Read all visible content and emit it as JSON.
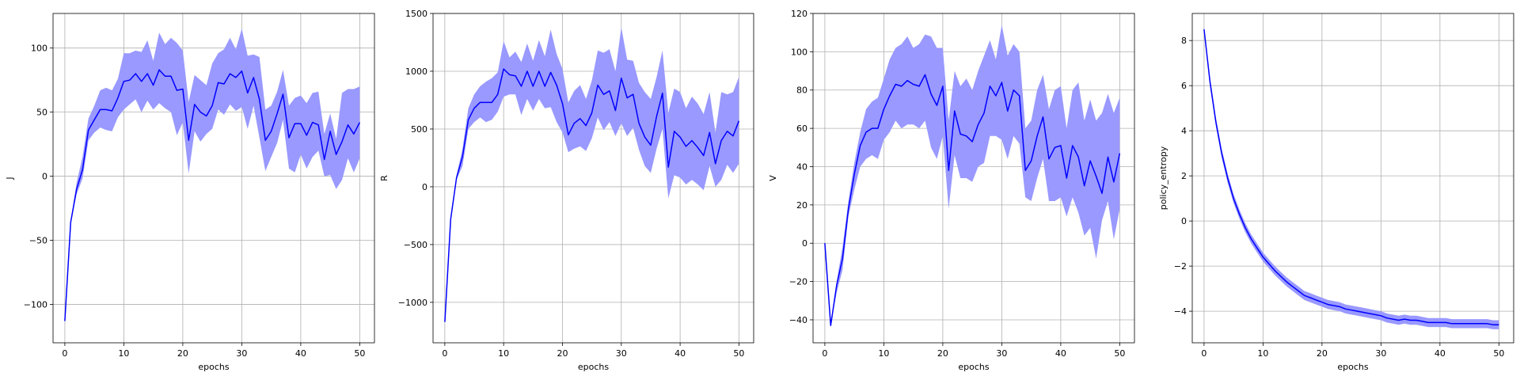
{
  "chart_data": [
    {
      "type": "line",
      "title": "",
      "xlabel": "epochs",
      "ylabel": "J",
      "xlim": [
        -2,
        52.5
      ],
      "ylim": [
        -130,
        127
      ],
      "xticks": [
        0,
        10,
        20,
        30,
        40,
        50
      ],
      "yticks": [
        -100,
        -50,
        0,
        50,
        100
      ],
      "grid": true,
      "line_color": "#0000ff",
      "band_color": "#9999ff",
      "x": [
        0,
        1,
        2,
        3,
        4,
        5,
        6,
        7,
        8,
        9,
        10,
        11,
        12,
        13,
        14,
        15,
        16,
        17,
        18,
        19,
        20,
        21,
        22,
        23,
        24,
        25,
        26,
        27,
        28,
        29,
        30,
        31,
        32,
        33,
        34,
        35,
        36,
        37,
        38,
        39,
        40,
        41,
        42,
        43,
        44,
        45,
        46,
        47,
        48,
        49,
        50
      ],
      "mean": [
        -113,
        -36,
        -10,
        5,
        36,
        44,
        52,
        52,
        51,
        61,
        74,
        75,
        80,
        74,
        80,
        71,
        83,
        78,
        78,
        67,
        68,
        28,
        56,
        50,
        47,
        55,
        73,
        72,
        80,
        77,
        82,
        65,
        77,
        60,
        28,
        35,
        49,
        64,
        30,
        41,
        41,
        32,
        42,
        40,
        13,
        35,
        17,
        27,
        40,
        33,
        42
      ],
      "upper": [
        -113,
        -35,
        -5,
        15,
        45,
        55,
        67,
        69,
        67,
        76,
        96,
        96,
        98,
        97,
        106,
        90,
        112,
        103,
        108,
        104,
        98,
        58,
        79,
        75,
        71,
        88,
        96,
        99,
        108,
        99,
        115,
        94,
        95,
        93,
        52,
        55,
        66,
        83,
        55,
        61,
        63,
        57,
        65,
        66,
        33,
        49,
        29,
        65,
        68,
        68,
        70
      ],
      "lower": [
        -113,
        -37,
        -14,
        -2,
        28,
        34,
        38,
        36,
        35,
        46,
        52,
        56,
        60,
        50,
        59,
        52,
        57,
        53,
        50,
        32,
        42,
        2,
        35,
        27,
        33,
        37,
        52,
        48,
        56,
        51,
        54,
        37,
        55,
        30,
        4,
        15,
        26,
        44,
        6,
        3,
        17,
        6,
        15,
        20,
        0,
        1,
        -10,
        -3,
        14,
        3,
        14
      ]
    },
    {
      "type": "line",
      "title": "",
      "xlabel": "epochs",
      "ylabel": "R",
      "xlim": [
        -2,
        52.5
      ],
      "ylim": [
        -1350,
        1500
      ],
      "xticks": [
        0,
        10,
        20,
        30,
        40,
        50
      ],
      "yticks": [
        -1000,
        -500,
        0,
        500,
        1000,
        1500
      ],
      "grid": true,
      "line_color": "#0000ff",
      "band_color": "#9999ff",
      "x": [
        0,
        1,
        2,
        3,
        4,
        5,
        6,
        7,
        8,
        9,
        10,
        11,
        12,
        13,
        14,
        15,
        16,
        17,
        18,
        19,
        20,
        21,
        22,
        23,
        24,
        25,
        26,
        27,
        28,
        29,
        30,
        31,
        32,
        33,
        34,
        35,
        36,
        37,
        38,
        39,
        40,
        41,
        42,
        43,
        44,
        45,
        46,
        47,
        48,
        49,
        50
      ],
      "mean": [
        -1170,
        -280,
        80,
        260,
        580,
        680,
        730,
        730,
        730,
        800,
        1020,
        970,
        960,
        870,
        1000,
        870,
        1000,
        870,
        990,
        880,
        720,
        450,
        550,
        590,
        530,
        640,
        880,
        800,
        830,
        660,
        940,
        770,
        800,
        550,
        430,
        360,
        610,
        810,
        170,
        480,
        430,
        350,
        400,
        340,
        270,
        470,
        200,
        400,
        480,
        440,
        570
      ],
      "upper": [
        -1170,
        -280,
        100,
        330,
        680,
        800,
        870,
        910,
        940,
        990,
        1260,
        1120,
        1170,
        1080,
        1240,
        1090,
        1270,
        1130,
        1360,
        1150,
        1020,
        730,
        830,
        880,
        760,
        920,
        1180,
        1160,
        1190,
        1000,
        1380,
        1100,
        1090,
        900,
        820,
        760,
        950,
        1180,
        640,
        850,
        820,
        680,
        780,
        720,
        630,
        820,
        470,
        820,
        800,
        820,
        950
      ],
      "lower": [
        -1170,
        -280,
        60,
        180,
        500,
        560,
        600,
        560,
        580,
        650,
        780,
        800,
        800,
        620,
        760,
        660,
        760,
        680,
        690,
        560,
        470,
        300,
        330,
        350,
        310,
        420,
        600,
        490,
        560,
        440,
        550,
        440,
        510,
        320,
        180,
        120,
        330,
        500,
        -100,
        100,
        80,
        20,
        60,
        20,
        -30,
        180,
        0,
        60,
        190,
        120,
        200
      ]
    },
    {
      "type": "line",
      "title": "",
      "xlabel": "epochs",
      "ylabel": "V",
      "xlim": [
        -2,
        52.5
      ],
      "ylim": [
        -52,
        120
      ],
      "xticks": [
        0,
        10,
        20,
        30,
        40,
        50
      ],
      "yticks": [
        -40,
        -20,
        0,
        20,
        40,
        60,
        80,
        100,
        120
      ],
      "grid": true,
      "line_color": "#0000ff",
      "band_color": "#9999ff",
      "x": [
        0,
        1,
        2,
        3,
        4,
        5,
        6,
        7,
        8,
        9,
        10,
        11,
        12,
        13,
        14,
        15,
        16,
        17,
        18,
        19,
        20,
        21,
        22,
        23,
        24,
        25,
        26,
        27,
        28,
        29,
        30,
        31,
        32,
        33,
        34,
        35,
        36,
        37,
        38,
        39,
        40,
        41,
        42,
        43,
        44,
        45,
        46,
        47,
        48,
        49,
        50
      ],
      "mean": [
        0,
        -43,
        -22,
        -8,
        18,
        36,
        51,
        58,
        60,
        60,
        70,
        77,
        83,
        82,
        85,
        83,
        82,
        88,
        78,
        72,
        82,
        38,
        69,
        57,
        56,
        53,
        62,
        68,
        82,
        77,
        84,
        69,
        80,
        77,
        38,
        43,
        56,
        66,
        44,
        50,
        51,
        34,
        51,
        45,
        30,
        43,
        35,
        26,
        45,
        32,
        47
      ],
      "upper": [
        0,
        -43,
        -20,
        -2,
        22,
        42,
        58,
        70,
        74,
        76,
        86,
        96,
        102,
        104,
        108,
        102,
        104,
        109,
        108,
        102,
        102,
        64,
        90,
        82,
        86,
        80,
        90,
        98,
        106,
        96,
        114,
        98,
        104,
        100,
        60,
        64,
        80,
        88,
        70,
        80,
        82,
        60,
        80,
        84,
        64,
        75,
        64,
        68,
        78,
        68,
        76
      ],
      "lower": [
        0,
        -43,
        -26,
        -14,
        14,
        28,
        40,
        44,
        46,
        44,
        54,
        58,
        64,
        60,
        62,
        62,
        60,
        64,
        50,
        44,
        56,
        18,
        46,
        34,
        34,
        32,
        40,
        42,
        56,
        56,
        54,
        44,
        56,
        52,
        24,
        22,
        34,
        44,
        22,
        22,
        24,
        14,
        24,
        16,
        4,
        8,
        -8,
        12,
        22,
        2,
        18
      ]
    },
    {
      "type": "line",
      "title": "",
      "xlabel": "epochs",
      "ylabel": "policy_entropy",
      "xlim": [
        -2,
        52.5
      ],
      "ylim": [
        -5.4,
        9.2
      ],
      "xticks": [
        0,
        10,
        20,
        30,
        40,
        50
      ],
      "yticks": [
        -4,
        -2,
        0,
        2,
        4,
        6,
        8
      ],
      "grid": true,
      "line_color": "#0000ff",
      "band_color": "#9999ff",
      "x": [
        0,
        1,
        2,
        3,
        4,
        5,
        6,
        7,
        8,
        9,
        10,
        11,
        12,
        13,
        14,
        15,
        16,
        17,
        18,
        19,
        20,
        21,
        22,
        23,
        24,
        25,
        26,
        27,
        28,
        29,
        30,
        31,
        32,
        33,
        34,
        35,
        36,
        37,
        38,
        39,
        40,
        41,
        42,
        43,
        44,
        45,
        46,
        47,
        48,
        49,
        50
      ],
      "mean": [
        8.5,
        6.2,
        4.4,
        3.0,
        1.9,
        1.0,
        0.3,
        -0.3,
        -0.8,
        -1.2,
        -1.6,
        -1.9,
        -2.2,
        -2.45,
        -2.7,
        -2.9,
        -3.1,
        -3.3,
        -3.4,
        -3.5,
        -3.6,
        -3.7,
        -3.75,
        -3.8,
        -3.9,
        -3.95,
        -4.0,
        -4.05,
        -4.1,
        -4.15,
        -4.2,
        -4.3,
        -4.35,
        -4.4,
        -4.35,
        -4.4,
        -4.4,
        -4.45,
        -4.5,
        -4.5,
        -4.5,
        -4.5,
        -4.55,
        -4.55,
        -4.55,
        -4.55,
        -4.55,
        -4.55,
        -4.55,
        -4.6,
        -4.6
      ],
      "upper": [
        8.6,
        6.4,
        4.6,
        3.2,
        2.1,
        1.2,
        0.5,
        -0.1,
        -0.6,
        -1.0,
        -1.4,
        -1.7,
        -2.0,
        -2.25,
        -2.5,
        -2.7,
        -2.9,
        -3.1,
        -3.2,
        -3.3,
        -3.4,
        -3.5,
        -3.55,
        -3.6,
        -3.7,
        -3.75,
        -3.8,
        -3.85,
        -3.9,
        -3.95,
        -4.0,
        -4.1,
        -4.15,
        -4.2,
        -4.15,
        -4.2,
        -4.2,
        -4.25,
        -4.3,
        -4.3,
        -4.3,
        -4.3,
        -4.35,
        -4.35,
        -4.35,
        -4.35,
        -4.35,
        -4.35,
        -4.35,
        -4.4,
        -4.4
      ],
      "lower": [
        8.4,
        6.0,
        4.2,
        2.8,
        1.7,
        0.8,
        0.1,
        -0.5,
        -1.0,
        -1.4,
        -1.8,
        -2.1,
        -2.4,
        -2.65,
        -2.9,
        -3.1,
        -3.3,
        -3.5,
        -3.6,
        -3.7,
        -3.8,
        -3.9,
        -3.95,
        -4.0,
        -4.1,
        -4.15,
        -4.2,
        -4.25,
        -4.3,
        -4.35,
        -4.4,
        -4.5,
        -4.55,
        -4.6,
        -4.55,
        -4.6,
        -4.6,
        -4.65,
        -4.7,
        -4.7,
        -4.7,
        -4.7,
        -4.75,
        -4.75,
        -4.75,
        -4.75,
        -4.75,
        -4.75,
        -4.75,
        -4.8,
        -4.8
      ]
    }
  ]
}
